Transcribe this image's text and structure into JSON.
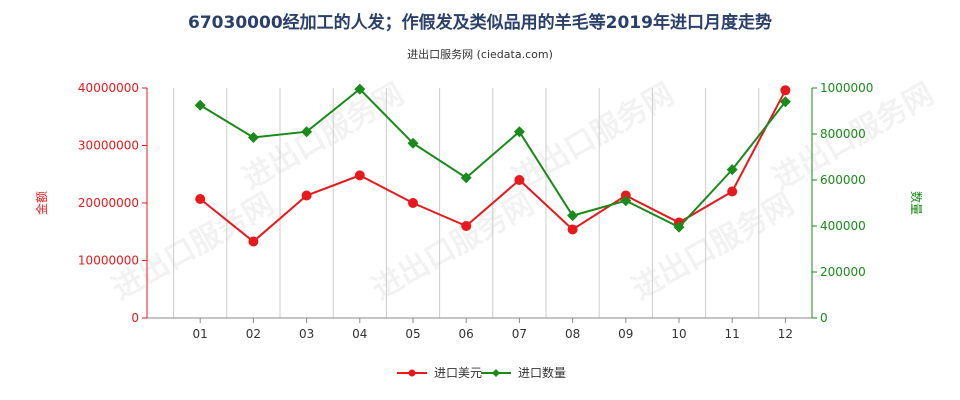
{
  "chart_data": {
    "type": "line",
    "title": "67030000经加工的人发；作假发及类似品用的羊毛等2019年进口月度走势",
    "subtitle": "进出口服务网 (ciedata.com)",
    "watermark": "进出口服务网",
    "categories": [
      "01",
      "02",
      "03",
      "04",
      "05",
      "06",
      "07",
      "08",
      "09",
      "10",
      "11",
      "12"
    ],
    "y_left": {
      "label": "金额",
      "lim": [
        0,
        40000000
      ],
      "ticks": [
        "0",
        "10000000",
        "20000000",
        "30000000",
        "40000000"
      ],
      "color": "#e8191c"
    },
    "y_right": {
      "label": "数量",
      "lim": [
        0,
        1000000
      ],
      "ticks": [
        "0",
        "200000",
        "400000",
        "600000",
        "800000",
        "1000000"
      ],
      "color": "#1a8a1a"
    },
    "series": [
      {
        "name": "进口美元",
        "axis": "left",
        "marker": "circle",
        "color": "#e8191c",
        "values": [
          20700000,
          13300000,
          21300000,
          24800000,
          20000000,
          16000000,
          24000000,
          15400000,
          21300000,
          16600000,
          22000000,
          39600000
        ]
      },
      {
        "name": "进口数量",
        "axis": "right",
        "marker": "diamond",
        "color": "#1a8a1a",
        "values": [
          925000,
          785000,
          810000,
          995000,
          760000,
          610000,
          810000,
          445000,
          510000,
          395000,
          645000,
          940000
        ]
      }
    ],
    "grid": "vertical",
    "legend_position": "bottom-center"
  }
}
